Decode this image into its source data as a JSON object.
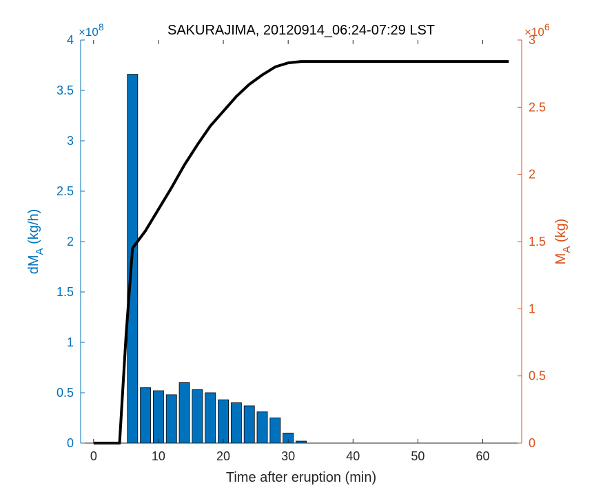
{
  "chart_data": {
    "type": "bar",
    "title": "SAKURAJIMA, 20120914_06:24-07:29 LST",
    "xlabel": "Time after eruption (min)",
    "ylabel_left": {
      "main": "dM",
      "sub": "A",
      "unit": " (kg/h)"
    },
    "ylabel_right": {
      "main": "M",
      "sub": "A",
      "unit": " (kg)"
    },
    "xlim": [
      -2,
      66
    ],
    "xticks": [
      0,
      10,
      20,
      30,
      40,
      50,
      60
    ],
    "ylim_left": [
      0,
      4
    ],
    "yticks_left": [
      "0",
      "0.5",
      "1",
      "1.5",
      "2",
      "2.5",
      "3",
      "3.5",
      "4"
    ],
    "ylim_right": [
      0,
      3
    ],
    "yticks_right": [
      "0",
      "0.5",
      "1",
      "1.5",
      "2",
      "2.5",
      "3"
    ],
    "left_exponent": {
      "base": "×10",
      "power": "8"
    },
    "right_exponent": {
      "base": "×10",
      "power": "6"
    },
    "grid": false,
    "colors": {
      "left_axis": "#0072BD",
      "right_axis": "#D95319",
      "bars": "#0072BD",
      "line": "#000000"
    },
    "bars": {
      "name": "dMA",
      "x": [
        0,
        2,
        4,
        6,
        8,
        10,
        12,
        14,
        16,
        18,
        20,
        22,
        24,
        26,
        28,
        30,
        32
      ],
      "values": [
        0,
        0,
        0,
        3.66,
        0.55,
        0.52,
        0.48,
        0.6,
        0.53,
        0.5,
        0.43,
        0.4,
        0.37,
        0.31,
        0.25,
        0.1,
        0.02
      ]
    },
    "line": {
      "name": "MA",
      "x": [
        0,
        2,
        4,
        5,
        6,
        8,
        10,
        12,
        14,
        16,
        18,
        20,
        22,
        24,
        26,
        28,
        30,
        32,
        34,
        40,
        50,
        60,
        64
      ],
      "values": [
        0,
        0,
        0,
        0.8,
        1.45,
        1.58,
        1.74,
        1.9,
        2.07,
        2.22,
        2.36,
        2.47,
        2.58,
        2.67,
        2.74,
        2.8,
        2.83,
        2.84,
        2.84,
        2.84,
        2.84,
        2.84,
        2.84
      ]
    }
  }
}
